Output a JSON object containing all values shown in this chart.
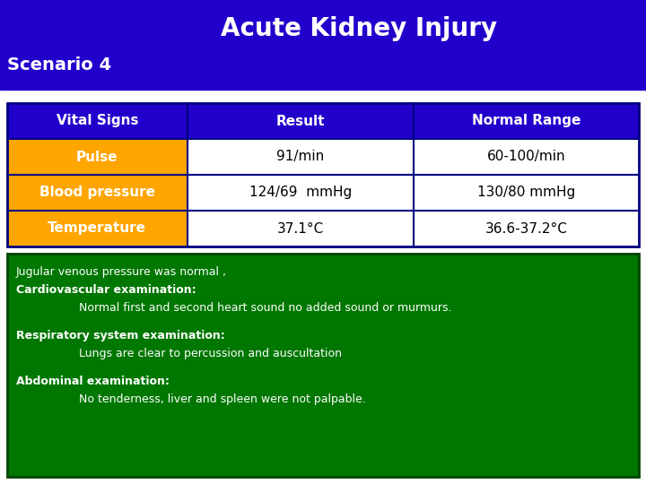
{
  "title": "Acute Kidney Injury",
  "scenario": "Scenario 4",
  "header_bg": "#2200CC",
  "header_text_color": "#FFFFFF",
  "table_header": [
    "Vital Signs",
    "Result",
    "Normal Range"
  ],
  "table_rows": [
    [
      "Pulse",
      "91/min",
      "60-100/min"
    ],
    [
      "Blood pressure",
      "124/69  mmHg",
      "130/80 mmHg"
    ],
    [
      "Temperature",
      "37.1°C",
      "36.6-37.2°C"
    ]
  ],
  "table_header_bg": "#2200CC",
  "table_header_text": "#FFFFFF",
  "row_label_bg": "#FFA500",
  "row_label_text": "#FFFFFF",
  "row_data_bg": "#FFFFFF",
  "row_data_text": "#000000",
  "table_border": "#000080",
  "notes_bg": "#007700",
  "notes_border": "#004400",
  "notes_text_color": "#FFFFFF",
  "notes_lines": [
    {
      "text": "Jugular venous pressure was normal ,",
      "bold": false,
      "indent": false
    },
    {
      "text": "Cardiovascular examination:",
      "bold": true,
      "indent": false
    },
    {
      "text": "Normal first and second heart sound no added sound or murmurs.",
      "bold": false,
      "indent": true
    },
    {
      "text": "",
      "bold": false,
      "indent": false
    },
    {
      "text": "Respiratory system examination:",
      "bold": true,
      "indent": false
    },
    {
      "text": "Lungs are clear to percussion and auscultation",
      "bold": false,
      "indent": true
    },
    {
      "text": "",
      "bold": false,
      "indent": false
    },
    {
      "text": "Abdominal examination:",
      "bold": true,
      "indent": false
    },
    {
      "text": "No tenderness, liver and spleen were not palpable.",
      "bold": false,
      "indent": true
    }
  ],
  "fig_width": 7.2,
  "fig_height": 5.4,
  "dpi": 100
}
